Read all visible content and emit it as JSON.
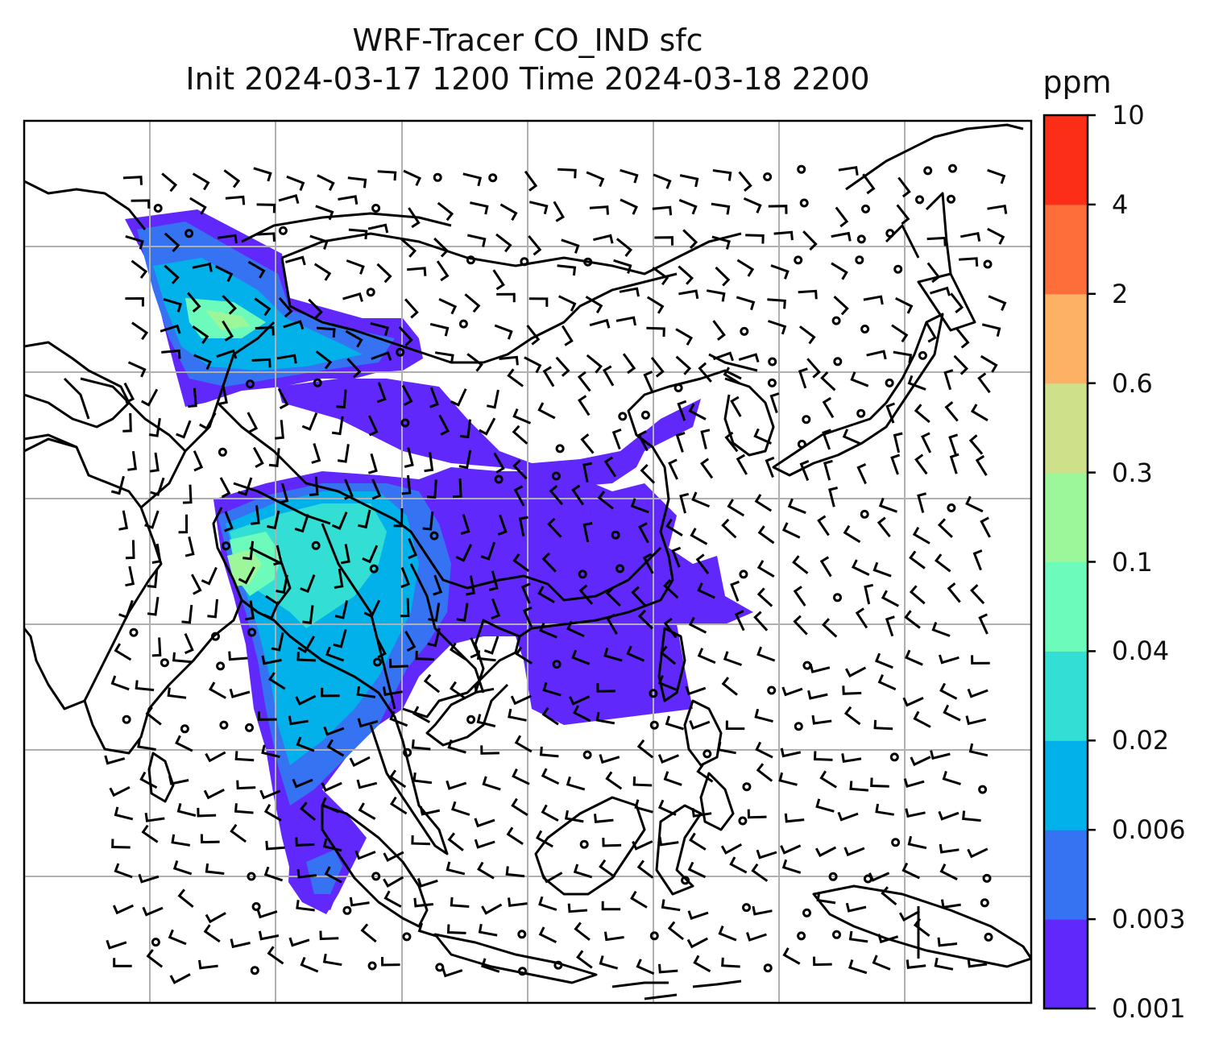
{
  "figure": {
    "title_line1": "WRF-Tracer CO_IND sfc",
    "title_line2": "Init 2024-03-17 1200 Time 2024-03-18 2200"
  },
  "colorbar": {
    "unit": "ppm",
    "levels": [
      "0.001",
      "0.003",
      "0.006",
      "0.02",
      "0.04",
      "0.1",
      "0.3",
      "0.6",
      "2",
      "4",
      "10"
    ],
    "colors": [
      "#6128fb",
      "#3573f3",
      "#02b1ea",
      "#33dfd4",
      "#6dfbbc",
      "#9cf69a",
      "#cfe08b",
      "#fcb164",
      "#fe6e3b",
      "#fd2e18"
    ]
  },
  "chart_data": {
    "type": "heatmap",
    "title": "WRF-Tracer CO_IND sfc\nInit 2024-03-17 1200 Time 2024-03-18 2200",
    "legend": "colorbar right",
    "colorbar_unit": "ppm",
    "colorbar_levels": [
      0.001,
      0.003,
      0.006,
      0.02,
      0.04,
      0.1,
      0.3,
      0.6,
      2,
      4,
      10
    ],
    "grid": true,
    "overlays": [
      "coastlines",
      "country borders",
      "wind barbs",
      "calm-wind circles"
    ]
  }
}
